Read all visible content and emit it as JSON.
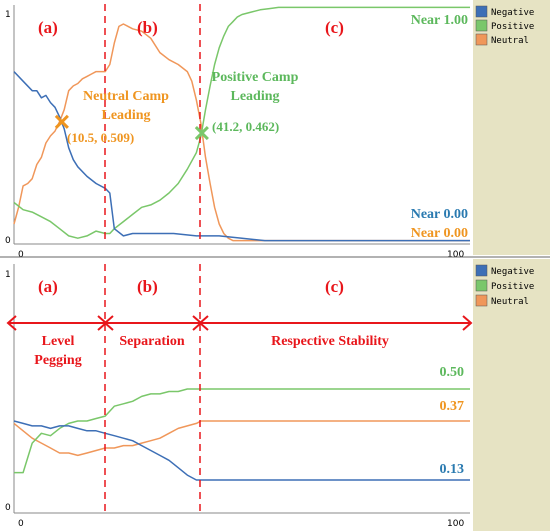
{
  "colors": {
    "negative": "#3d6fb6",
    "positive": "#7ac76a",
    "neutral": "#f0975a",
    "annotation_red": "#e8161b",
    "label_blue": "#2a7ab0",
    "label_orange": "#ef9520",
    "label_green": "#5cb85c",
    "legend_bg": "#e6e3c3",
    "plot_bg": "#ffffff"
  },
  "chart_data": [
    {
      "type": "line",
      "xlim": [
        0,
        100
      ],
      "ylim": [
        0,
        1
      ],
      "x_ticks": [
        "0",
        "100"
      ],
      "y_ticks": [
        "0",
        "1"
      ],
      "legend": [
        "Negative",
        "Positive",
        "Neutral"
      ],
      "legend_placement": "right",
      "phase_labels": [
        "(a)",
        "(b)",
        "(c)"
      ],
      "phase_boundaries_x": [
        21,
        41
      ],
      "annotations": {
        "neutral_leading": [
          "Neutral Camp",
          "Leading"
        ],
        "positive_leading": [
          "Positive Camp",
          "Leading"
        ],
        "cross1_label": "(10.5, 0.509)",
        "cross2_label": "(41.2, 0.462)",
        "near_positive": "Near 1.00",
        "near_negative": "Near 0.00",
        "near_neutral": "Near 0.00"
      },
      "cross_points": [
        {
          "x": 10.5,
          "y": 0.509
        },
        {
          "x": 41.2,
          "y": 0.462
        }
      ],
      "series": [
        {
          "name": "Negative",
          "x": [
            0,
            2,
            4,
            5,
            6,
            7,
            8,
            9,
            10,
            11,
            12,
            13,
            14,
            16,
            18,
            20,
            21,
            22,
            24,
            26,
            28,
            30,
            35,
            40,
            42,
            45,
            50,
            55,
            60,
            70,
            80,
            90,
            100
          ],
          "y": [
            0.72,
            0.68,
            0.64,
            0.64,
            0.61,
            0.62,
            0.59,
            0.57,
            0.53,
            0.48,
            0.4,
            0.35,
            0.32,
            0.28,
            0.25,
            0.23,
            0.21,
            0.06,
            0.03,
            0.04,
            0.04,
            0.04,
            0.04,
            0.03,
            0.03,
            0.03,
            0.02,
            0.01,
            0.01,
            0.01,
            0.01,
            0.01,
            0.01
          ]
        },
        {
          "name": "Positive",
          "x": [
            0,
            2,
            4,
            6,
            8,
            10,
            12,
            14,
            16,
            18,
            20,
            21,
            22,
            24,
            26,
            28,
            30,
            32,
            34,
            36,
            38,
            40,
            41,
            42,
            43,
            44,
            45,
            46,
            47,
            48,
            49,
            50,
            52,
            54,
            56,
            58,
            60,
            65,
            70,
            80,
            90,
            100
          ],
          "y": [
            0.17,
            0.14,
            0.13,
            0.11,
            0.09,
            0.06,
            0.03,
            0.02,
            0.03,
            0.05,
            0.04,
            0.04,
            0.06,
            0.09,
            0.12,
            0.15,
            0.16,
            0.18,
            0.21,
            0.25,
            0.31,
            0.38,
            0.45,
            0.56,
            0.66,
            0.75,
            0.82,
            0.87,
            0.91,
            0.93,
            0.95,
            0.96,
            0.97,
            0.98,
            0.985,
            0.99,
            0.99,
            0.99,
            0.99,
            0.99,
            0.99,
            0.99
          ]
        },
        {
          "name": "Neutral",
          "x": [
            0,
            1,
            2,
            3,
            4,
            5,
            6,
            7,
            8,
            9,
            10,
            11,
            12,
            13,
            14,
            15,
            16,
            17,
            18,
            19,
            20,
            21,
            22,
            23,
            24,
            26,
            28,
            30,
            32,
            34,
            36,
            38,
            39,
            40,
            41,
            42,
            43,
            44,
            45,
            46,
            47,
            48,
            50,
            52,
            55,
            60,
            70,
            80,
            90,
            100
          ],
          "y": [
            0.08,
            0.15,
            0.24,
            0.25,
            0.27,
            0.33,
            0.36,
            0.42,
            0.45,
            0.47,
            0.51,
            0.56,
            0.64,
            0.66,
            0.67,
            0.69,
            0.7,
            0.71,
            0.72,
            0.72,
            0.72,
            0.75,
            0.84,
            0.91,
            0.92,
            0.9,
            0.89,
            0.86,
            0.8,
            0.77,
            0.75,
            0.72,
            0.68,
            0.6,
            0.5,
            0.36,
            0.25,
            0.15,
            0.08,
            0.04,
            0.02,
            0.01,
            0.01,
            0.01,
            0.01,
            0.01,
            0.01,
            0.01,
            0.01,
            0.01
          ]
        }
      ]
    },
    {
      "type": "line",
      "xlim": [
        0,
        100
      ],
      "ylim": [
        0,
        1
      ],
      "x_ticks": [
        "0",
        "100"
      ],
      "y_ticks": [
        "0",
        "1"
      ],
      "legend": [
        "Negative",
        "Positive",
        "Neutral"
      ],
      "legend_placement": "right",
      "phase_labels": [
        "(a)",
        "(b)",
        "(c)"
      ],
      "phase_boundaries_x": [
        21,
        41
      ],
      "phase_names": [
        [
          "Level",
          "Pegging"
        ],
        [
          "Separation"
        ],
        [
          "Respective Stability"
        ]
      ],
      "end_labels": {
        "positive": "0.50",
        "neutral": "0.37",
        "negative": "0.13"
      },
      "series": [
        {
          "name": "Negative",
          "x": [
            0,
            2,
            4,
            6,
            8,
            10,
            12,
            14,
            16,
            18,
            20,
            22,
            24,
            26,
            28,
            30,
            32,
            34,
            36,
            38,
            40,
            41,
            45,
            50,
            60,
            70,
            80,
            90,
            100
          ],
          "y": [
            0.37,
            0.36,
            0.35,
            0.35,
            0.34,
            0.35,
            0.35,
            0.34,
            0.33,
            0.33,
            0.32,
            0.31,
            0.3,
            0.29,
            0.27,
            0.25,
            0.23,
            0.21,
            0.18,
            0.15,
            0.13,
            0.13,
            0.13,
            0.13,
            0.13,
            0.13,
            0.13,
            0.13,
            0.13
          ]
        },
        {
          "name": "Positive",
          "x": [
            0,
            2,
            4,
            6,
            8,
            10,
            12,
            14,
            16,
            18,
            20,
            22,
            24,
            26,
            28,
            30,
            32,
            34,
            36,
            38,
            40,
            41,
            50,
            60,
            70,
            80,
            90,
            100
          ],
          "y": [
            0.16,
            0.16,
            0.28,
            0.32,
            0.31,
            0.34,
            0.36,
            0.37,
            0.37,
            0.38,
            0.39,
            0.43,
            0.44,
            0.45,
            0.47,
            0.48,
            0.48,
            0.49,
            0.49,
            0.5,
            0.5,
            0.5,
            0.5,
            0.5,
            0.5,
            0.5,
            0.5,
            0.5
          ]
        },
        {
          "name": "Neutral",
          "x": [
            0,
            2,
            4,
            6,
            8,
            10,
            12,
            14,
            16,
            18,
            20,
            22,
            24,
            26,
            28,
            30,
            32,
            34,
            36,
            38,
            40,
            41,
            50,
            60,
            70,
            80,
            90,
            100
          ],
          "y": [
            0.36,
            0.33,
            0.3,
            0.28,
            0.26,
            0.24,
            0.24,
            0.23,
            0.24,
            0.25,
            0.26,
            0.26,
            0.27,
            0.27,
            0.28,
            0.29,
            0.3,
            0.32,
            0.34,
            0.35,
            0.36,
            0.37,
            0.37,
            0.37,
            0.37,
            0.37,
            0.37,
            0.37
          ]
        }
      ]
    }
  ]
}
